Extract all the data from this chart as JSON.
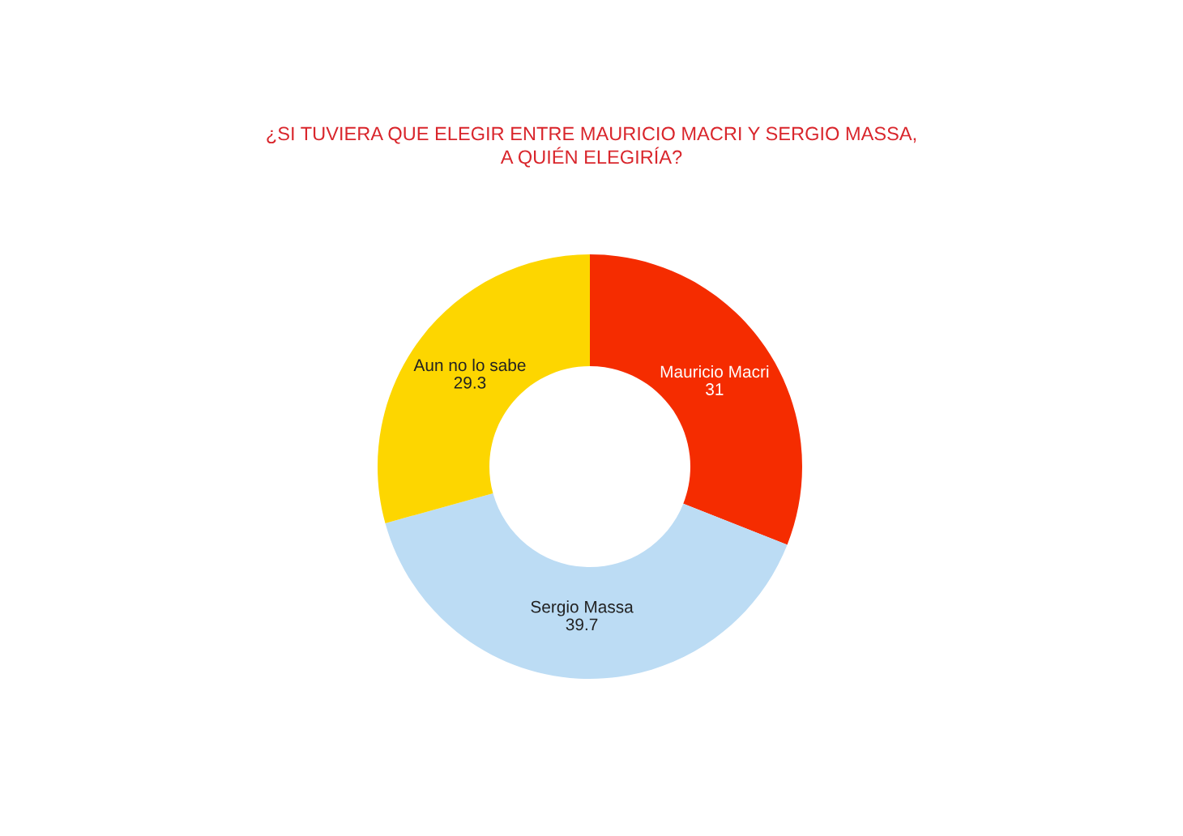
{
  "chart_data": {
    "type": "donut",
    "title": "¿SI TUVIERA QUE ELEGIR ENTRE MAURICIO MACRI Y SERGIO MASSA,\nA QUIÉN ELEGIRÍA?",
    "categories": [
      "Mauricio Macri",
      "Sergio Massa",
      "Aun no lo sabe"
    ],
    "values": [
      31,
      39.7,
      29.3
    ],
    "colors": [
      "#f52c00",
      "#bcdcf4",
      "#fdd600"
    ],
    "data_labels": true
  }
}
